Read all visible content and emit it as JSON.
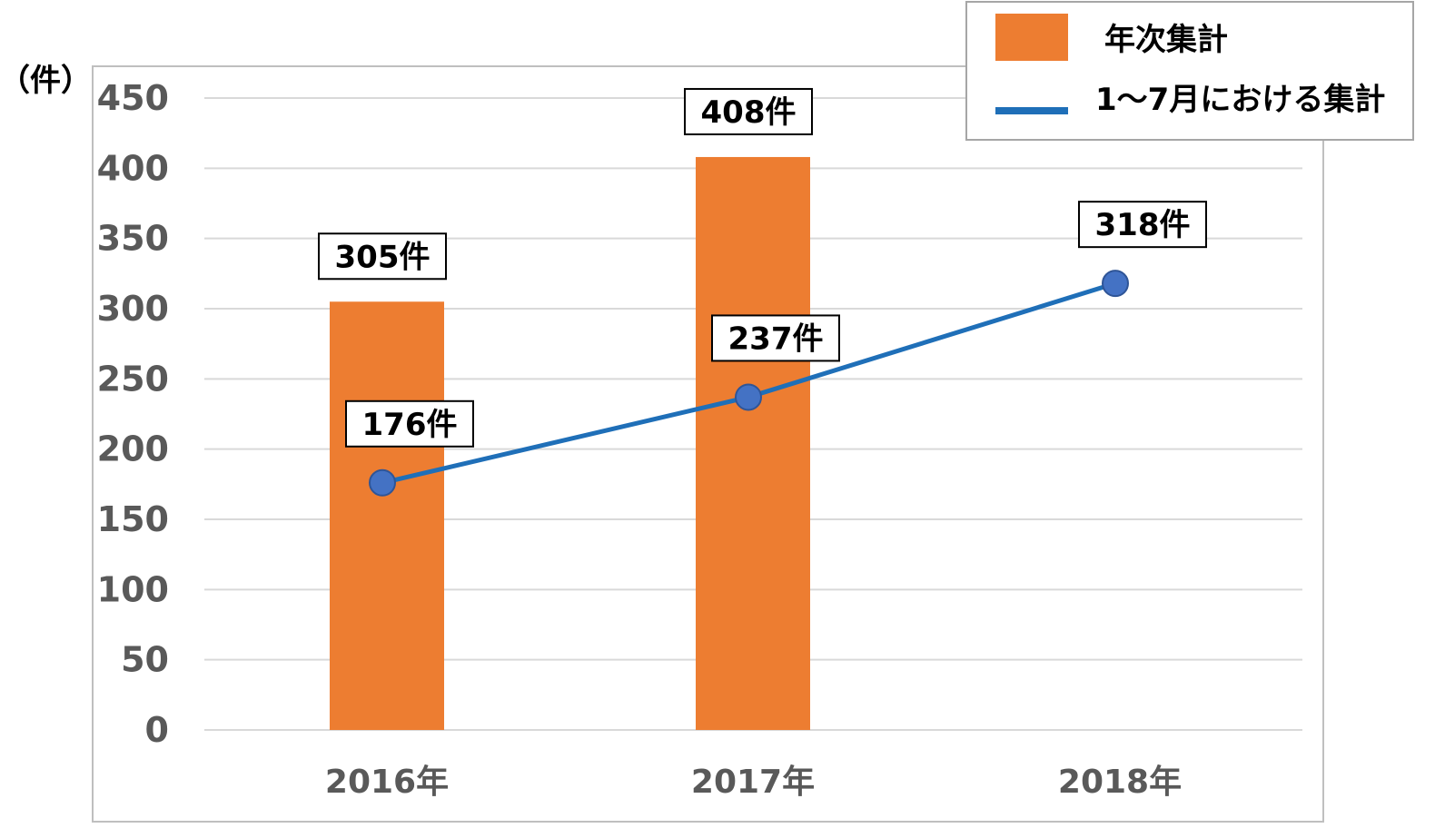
{
  "unit_label": "（件）",
  "chart_data": {
    "type": "bar",
    "categories": [
      "2016年",
      "2017年",
      "2018年"
    ],
    "series": [
      {
        "name": "年次集計",
        "type": "bar",
        "values": [
          305,
          408,
          null
        ],
        "labels": [
          "305件",
          "408件",
          ""
        ],
        "color": "#ED7D31"
      },
      {
        "name": "1～7月における集計",
        "type": "line",
        "values": [
          176,
          237,
          318
        ],
        "labels": [
          "176件",
          "237件",
          "318件"
        ],
        "color": "#1F6FB8",
        "marker_color": "#4472C4"
      }
    ],
    "y_ticks": [
      "0",
      "50",
      "100",
      "150",
      "200",
      "250",
      "300",
      "350",
      "400",
      "450"
    ],
    "ylim": [
      0,
      450
    ],
    "grid": true,
    "legend_position": "top-right"
  },
  "colors": {
    "gridline": "#D9D9D9",
    "frame": "#BFBFBF",
    "axis_text": "#595959",
    "label_box_border": "#000000"
  }
}
